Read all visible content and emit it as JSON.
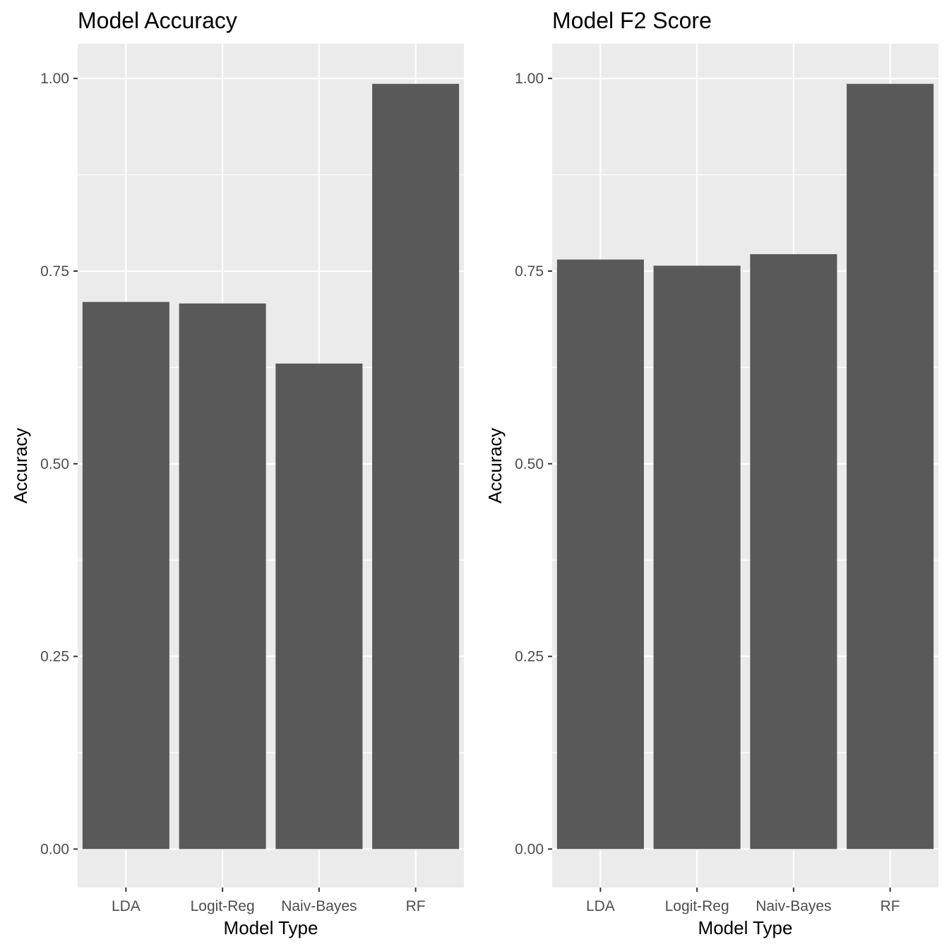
{
  "chart_data": [
    {
      "type": "bar",
      "title": "Model Accuracy",
      "xlabel": "Model Type",
      "ylabel": "Accuracy",
      "categories": [
        "LDA",
        "Logit-Reg",
        "Naiv-Bayes",
        "RF"
      ],
      "values": [
        0.71,
        0.708,
        0.63,
        0.993
      ],
      "ylim": [
        -0.05,
        1.045
      ],
      "yticks": [
        0.0,
        0.25,
        0.5,
        0.75,
        1.0
      ],
      "ytick_labels": [
        "0.00",
        "0.25",
        "0.50",
        "0.75",
        "1.00"
      ],
      "grid": true,
      "bar_color": "#595959",
      "panel_color": "#ebebeb",
      "grid_color": "#ffffff"
    },
    {
      "type": "bar",
      "title": "Model F2 Score",
      "xlabel": "Model Type",
      "ylabel": "Accuracy",
      "categories": [
        "LDA",
        "Logit-Reg",
        "Naiv-Bayes",
        "RF"
      ],
      "values": [
        0.765,
        0.757,
        0.772,
        0.993
      ],
      "ylim": [
        -0.05,
        1.045
      ],
      "yticks": [
        0.0,
        0.25,
        0.5,
        0.75,
        1.0
      ],
      "ytick_labels": [
        "0.00",
        "0.25",
        "0.50",
        "0.75",
        "1.00"
      ],
      "grid": true,
      "bar_color": "#595959",
      "panel_color": "#ebebeb",
      "grid_color": "#ffffff"
    }
  ]
}
